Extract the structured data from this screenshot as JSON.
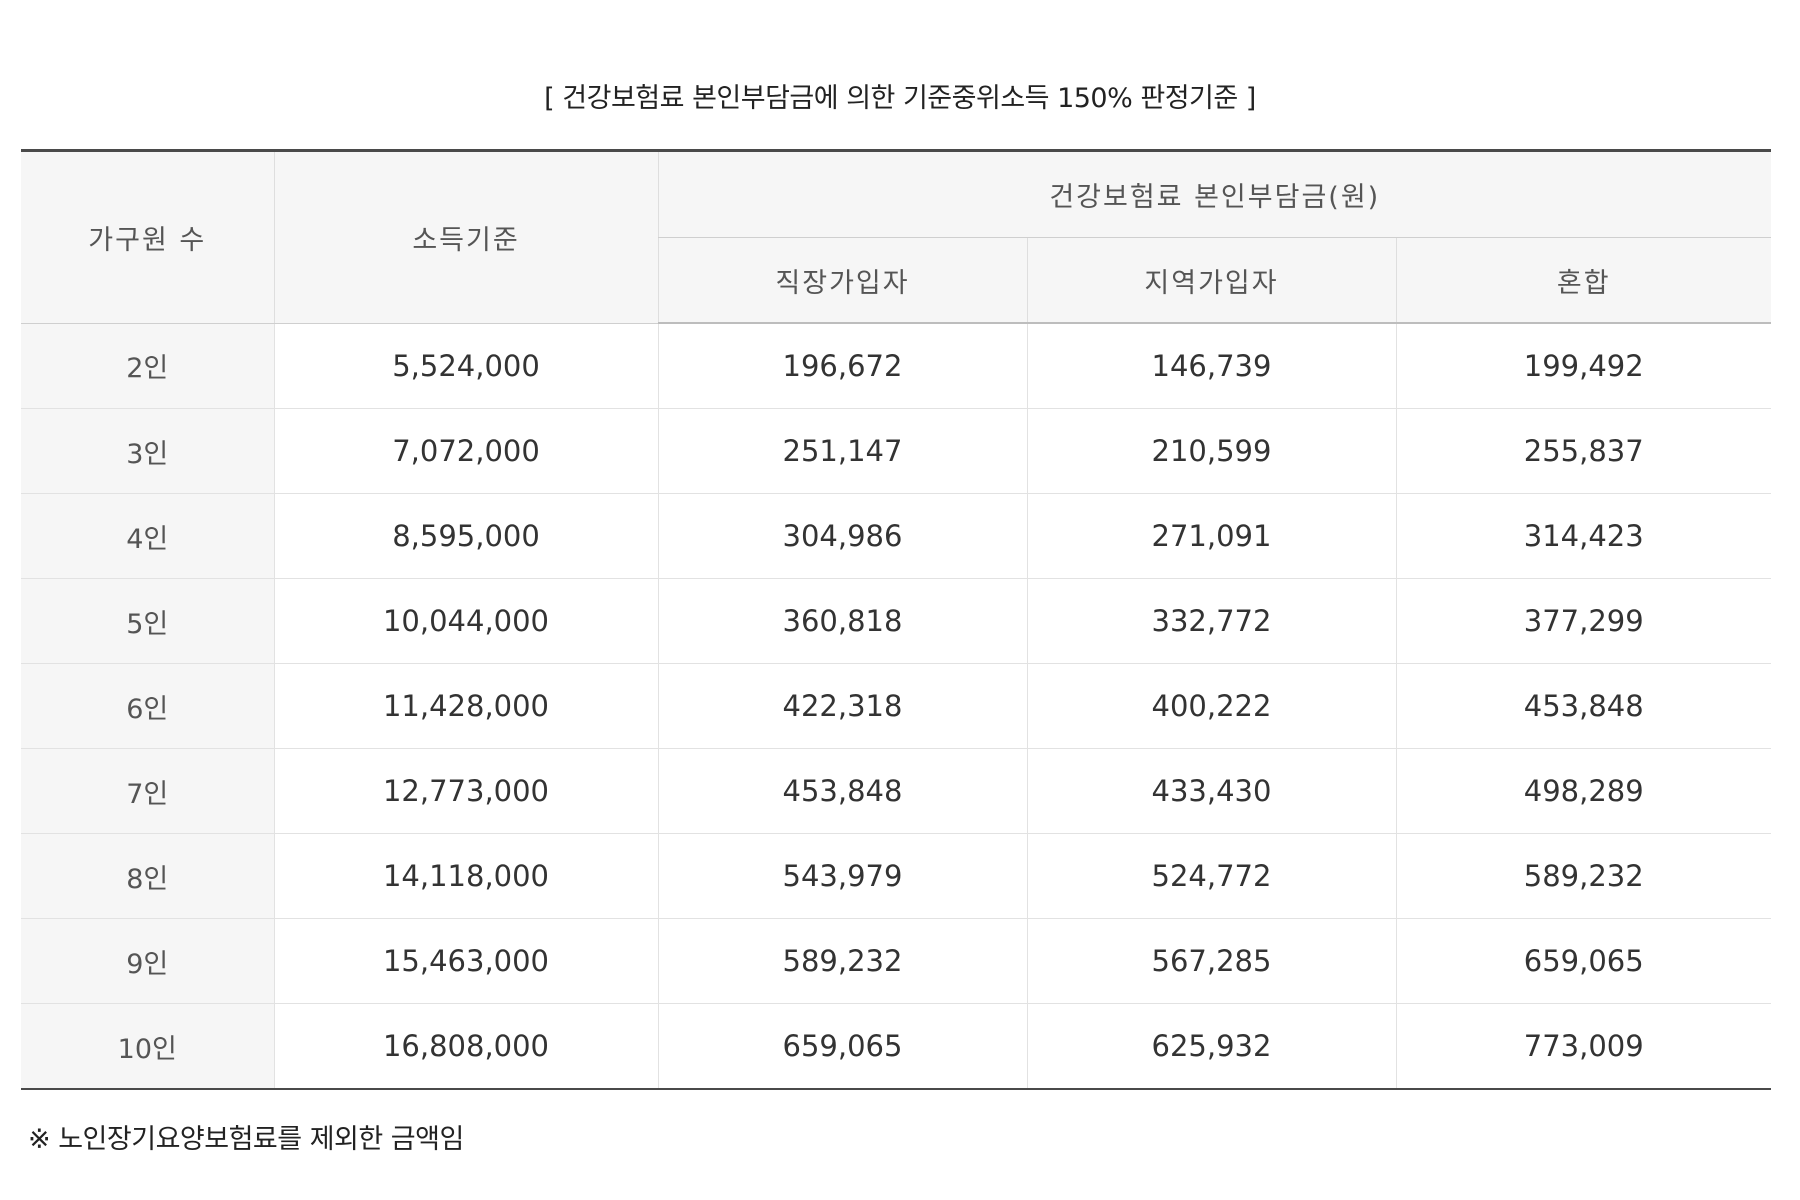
{
  "title": "[ 건강보험료 본인부담금에 의한 기준중위소득 150% 판정기준 ]",
  "headers": {
    "household": "가구원 수",
    "income": "소득기준",
    "premium_group": "건강보험료 본인부담금(원)",
    "employee": "직장가입자",
    "regional": "지역가입자",
    "mixed": "혼합"
  },
  "rows": [
    {
      "household": "2인",
      "income": "5,524,000",
      "employee": "196,672",
      "regional": "146,739",
      "mixed": "199,492"
    },
    {
      "household": "3인",
      "income": "7,072,000",
      "employee": "251,147",
      "regional": "210,599",
      "mixed": "255,837"
    },
    {
      "household": "4인",
      "income": "8,595,000",
      "employee": "304,986",
      "regional": "271,091",
      "mixed": "314,423"
    },
    {
      "household": "5인",
      "income": "10,044,000",
      "employee": "360,818",
      "regional": "332,772",
      "mixed": "377,299"
    },
    {
      "household": "6인",
      "income": "11,428,000",
      "employee": "422,318",
      "regional": "400,222",
      "mixed": "453,848"
    },
    {
      "household": "7인",
      "income": "12,773,000",
      "employee": "453,848",
      "regional": "433,430",
      "mixed": "498,289"
    },
    {
      "household": "8인",
      "income": "14,118,000",
      "employee": "543,979",
      "regional": "524,772",
      "mixed": "589,232"
    },
    {
      "household": "9인",
      "income": "15,463,000",
      "employee": "589,232",
      "regional": "567,285",
      "mixed": "659,065"
    },
    {
      "household": "10인",
      "income": "16,808,000",
      "employee": "659,065",
      "regional": "625,932",
      "mixed": "773,009"
    }
  ],
  "footnote": "※ 노인장기요양보험료를 제외한 금액임"
}
